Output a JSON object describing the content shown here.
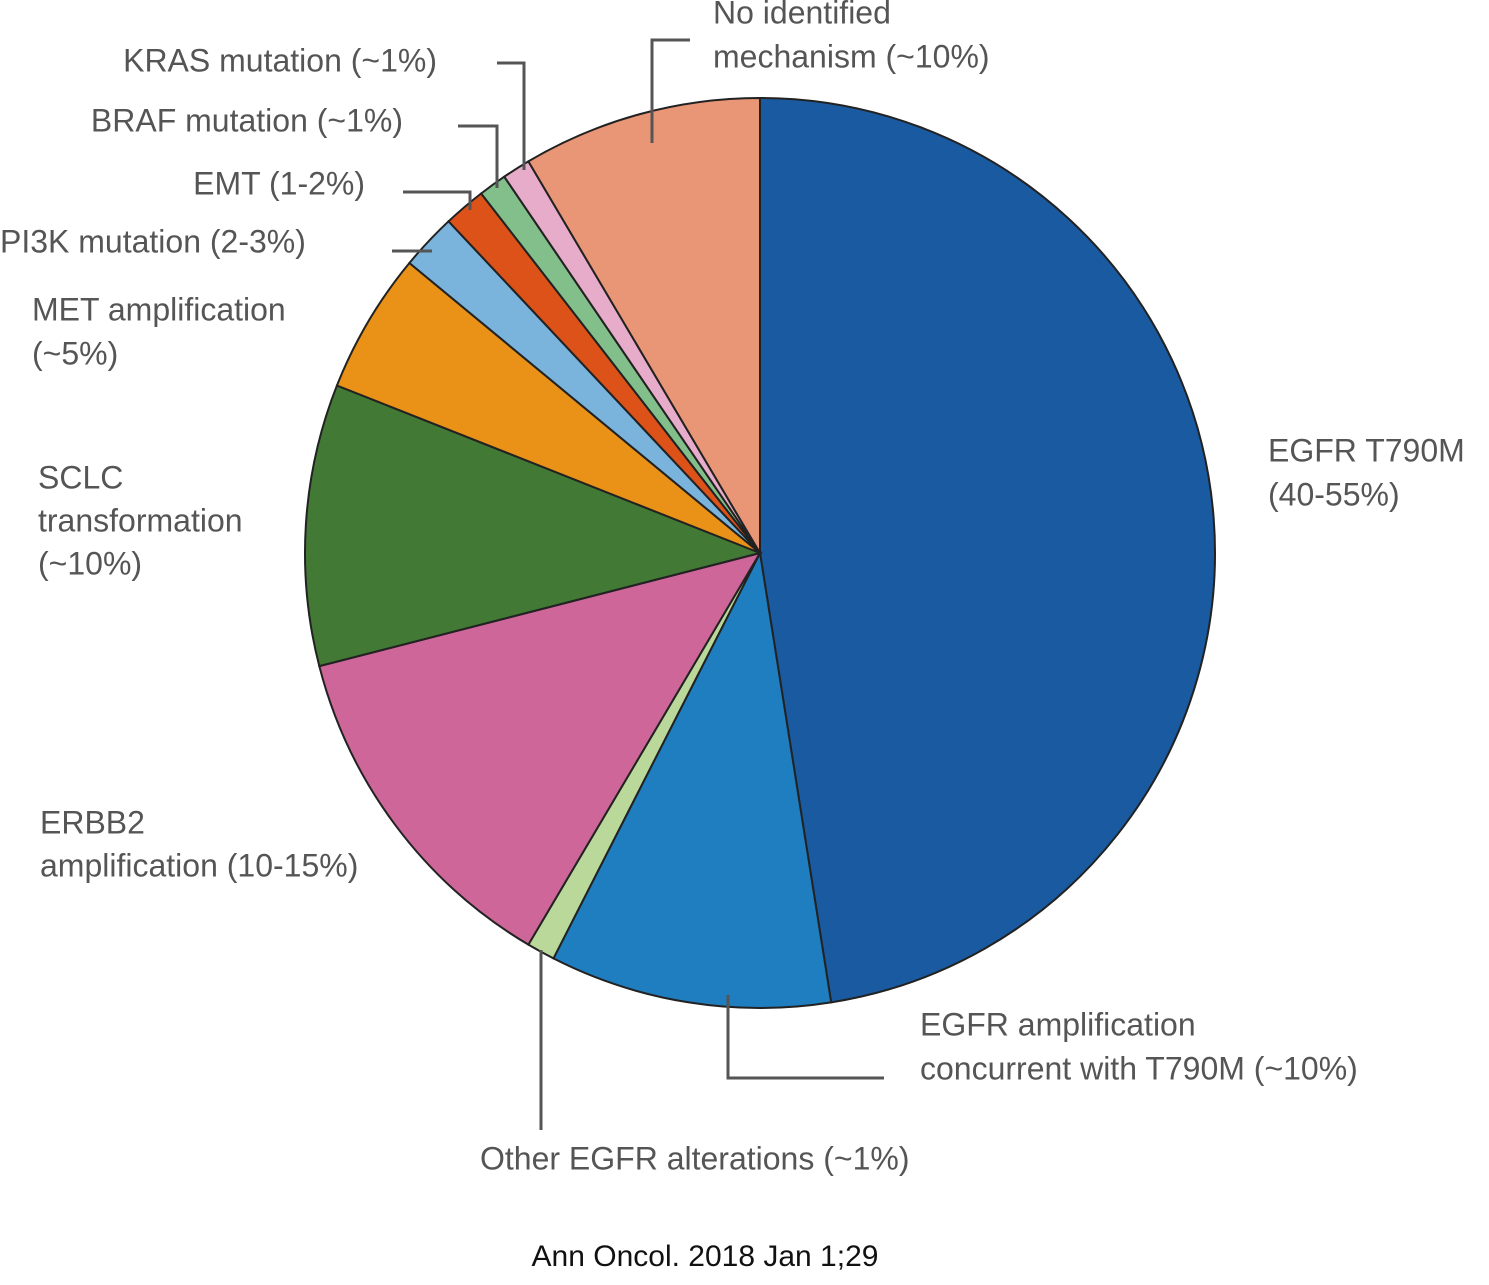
{
  "chart_data": {
    "type": "pie",
    "categories": [
      [
        "EGFR T790M",
        "(40-55%)"
      ],
      [
        "EGFR amplification",
        "concurrent with T790M (~10%)"
      ],
      [
        "Other  EGFR  alterations (~1%)"
      ],
      [
        "ERBB2",
        "amplification (10-15%)"
      ],
      [
        "SCLC",
        "transformation",
        "(~10%)"
      ],
      [
        "MET amplification",
        "(~5%)"
      ],
      [
        "PI3K mutation (2-3%)"
      ],
      [
        "EMT (1-2%)"
      ],
      [
        "BRAF mutation (~1%)"
      ],
      [
        "KRAS mutation (~1%)"
      ],
      [
        "No identified",
        "mechanism (~10%)"
      ]
    ],
    "values": [
      47.5,
      10,
      1,
      12.5,
      10,
      5,
      2,
      1.5,
      1,
      1,
      8.5
    ],
    "colors": [
      "#1a5aa0",
      "#1e7ec0",
      "#b9d89a",
      "#cf6699",
      "#427935",
      "#e99217",
      "#7ab4dc",
      "#dc5218",
      "#82bf8a",
      "#e7acc9",
      "#e99677"
    ],
    "source": "Ann Oncol. 2018 Jan 1;29"
  }
}
